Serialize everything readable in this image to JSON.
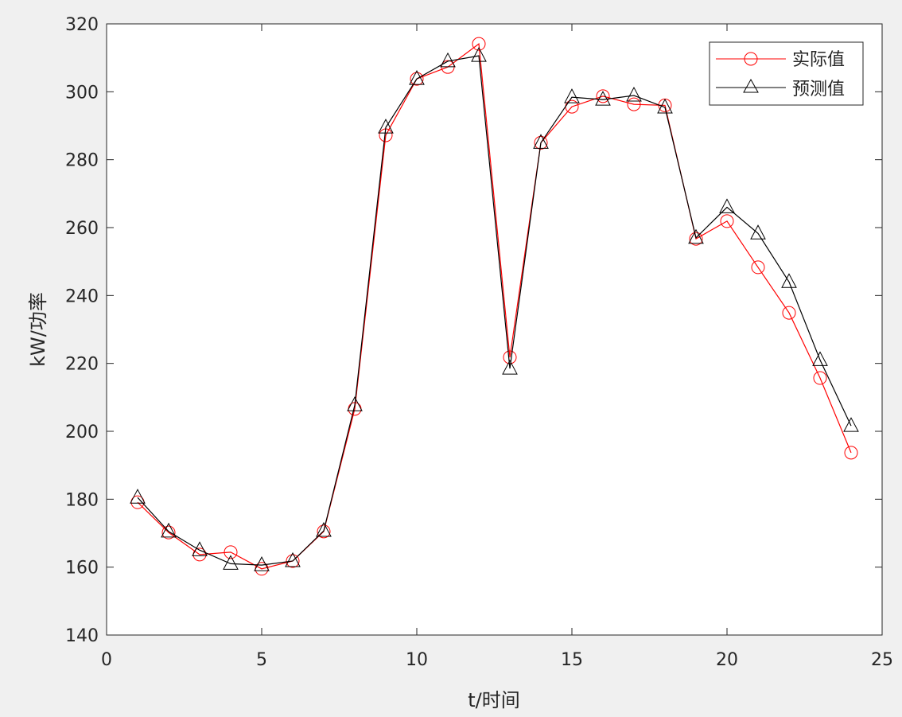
{
  "chart_data": {
    "type": "line",
    "title": "",
    "xlabel": "t/时间",
    "ylabel": "kW/功率",
    "xlim": [
      0,
      25
    ],
    "ylim": [
      140,
      320
    ],
    "xticks": [
      0,
      5,
      10,
      15,
      20,
      25
    ],
    "yticks": [
      140,
      160,
      180,
      200,
      220,
      240,
      260,
      280,
      300,
      320
    ],
    "grid": false,
    "legend_position": "top-right",
    "x": [
      1,
      2,
      3,
      4,
      5,
      6,
      7,
      8,
      9,
      10,
      11,
      12,
      13,
      14,
      15,
      16,
      17,
      18,
      19,
      20,
      21,
      22,
      23,
      24
    ],
    "series": [
      {
        "name": "实际值",
        "color": "#ff0000",
        "marker": "circle",
        "values": [
          179.1,
          170.2,
          163.7,
          164.4,
          159.5,
          161.8,
          170.5,
          206.6,
          287.2,
          303.8,
          307.3,
          314.1,
          221.8,
          285.0,
          295.6,
          298.7,
          296.3,
          296.0,
          256.7,
          261.9,
          248.3,
          234.9,
          215.7,
          193.7
        ]
      },
      {
        "name": "预测值",
        "color": "#000000",
        "marker": "triangle",
        "values": [
          180.5,
          170.5,
          165.0,
          161.0,
          160.6,
          161.8,
          170.7,
          207.7,
          289.5,
          303.8,
          309.0,
          310.6,
          218.5,
          285.0,
          298.4,
          297.7,
          298.9,
          295.4,
          257.0,
          266.0,
          258.3,
          244.0,
          221.0,
          201.6
        ]
      }
    ]
  }
}
